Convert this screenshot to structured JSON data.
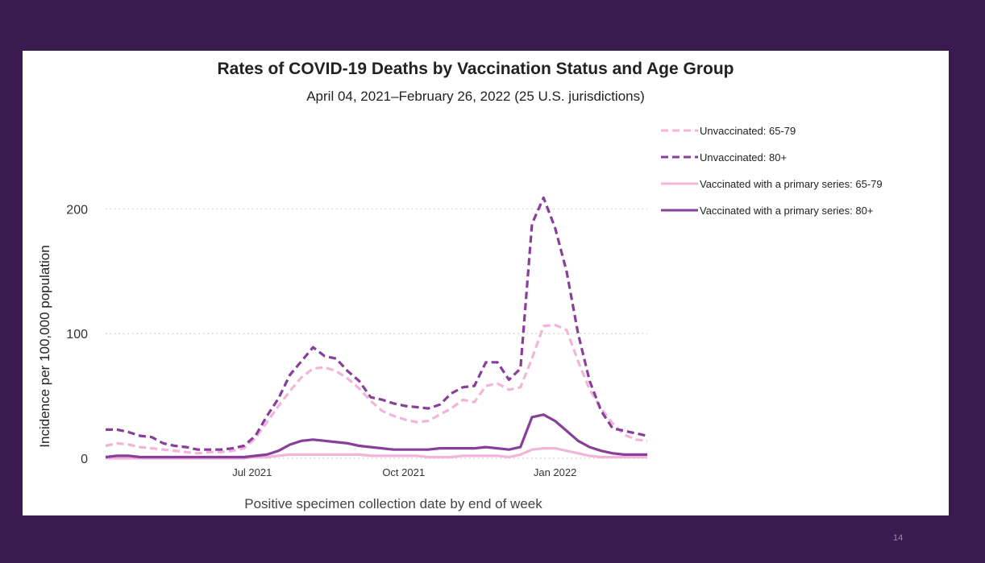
{
  "slide": {
    "page_number": "14",
    "background_color": "#3b1a50"
  },
  "chart_data": {
    "type": "line",
    "title": "Rates of COVID-19 Deaths by Vaccination Status and Age Group",
    "subtitle": "April 04, 2021–February 26, 2022 (25 U.S. jurisdictions)",
    "xlabel": "Positive specimen collection date by end of week",
    "ylabel": "Incidence per 100,000 population",
    "ylim": [
      0,
      230
    ],
    "xlim": [
      "2021-04-03",
      "2022-02-26"
    ],
    "y_ticks": [
      0,
      100,
      200
    ],
    "x_ticks": [
      {
        "label": "Jul 2021",
        "date": "2021-07-01"
      },
      {
        "label": "Oct 2021",
        "date": "2021-10-01"
      },
      {
        "label": "Jan 2022",
        "date": "2022-01-01"
      }
    ],
    "grid": "horizontal dotted",
    "legend_position": "top-right",
    "weeks": [
      "2021-04-03",
      "2021-04-10",
      "2021-04-17",
      "2021-04-24",
      "2021-05-01",
      "2021-05-08",
      "2021-05-15",
      "2021-05-22",
      "2021-05-29",
      "2021-06-05",
      "2021-06-12",
      "2021-06-19",
      "2021-06-26",
      "2021-07-03",
      "2021-07-10",
      "2021-07-17",
      "2021-07-24",
      "2021-07-31",
      "2021-08-07",
      "2021-08-14",
      "2021-08-21",
      "2021-08-28",
      "2021-09-04",
      "2021-09-11",
      "2021-09-18",
      "2021-09-25",
      "2021-10-02",
      "2021-10-09",
      "2021-10-16",
      "2021-10-23",
      "2021-10-30",
      "2021-11-06",
      "2021-11-13",
      "2021-11-20",
      "2021-11-27",
      "2021-12-04",
      "2021-12-11",
      "2021-12-18",
      "2021-12-25",
      "2022-01-01",
      "2022-01-08",
      "2022-01-15",
      "2022-01-22",
      "2022-01-29",
      "2022-02-05",
      "2022-02-12",
      "2022-02-19",
      "2022-02-26"
    ],
    "series": [
      {
        "name": "Unvaccinated: 65-79",
        "color": "#f2b5d9",
        "dash": "dashed",
        "values": [
          10,
          12,
          11,
          9,
          8,
          7,
          6,
          5,
          4,
          5,
          5,
          6,
          8,
          16,
          29,
          42,
          54,
          65,
          72,
          73,
          70,
          64,
          56,
          46,
          38,
          34,
          31,
          29,
          30,
          35,
          40,
          47,
          45,
          58,
          60,
          55,
          57,
          80,
          106,
          107,
          103,
          78,
          55,
          40,
          28,
          19,
          15,
          14
        ]
      },
      {
        "name": "Unvaccinated: 80+",
        "color": "#873f99",
        "dash": "dashed",
        "values": [
          23,
          23,
          21,
          18,
          17,
          12,
          10,
          9,
          7,
          7,
          7,
          8,
          10,
          18,
          34,
          48,
          67,
          78,
          89,
          82,
          80,
          70,
          62,
          49,
          47,
          44,
          42,
          41,
          40,
          43,
          52,
          57,
          58,
          77,
          77,
          63,
          72,
          188,
          209,
          185,
          150,
          100,
          62,
          38,
          24,
          22,
          20,
          18
        ]
      },
      {
        "name": "Vaccinated with a primary series: 65-79",
        "color": "#f2b5d9",
        "dash": "solid",
        "values": [
          0,
          0,
          0,
          0,
          0,
          0,
          0,
          0,
          0,
          0,
          0,
          0,
          0,
          1,
          1,
          2,
          3,
          3,
          3,
          3,
          3,
          3,
          3,
          2,
          2,
          2,
          2,
          2,
          1,
          1,
          1,
          2,
          2,
          2,
          2,
          1,
          3,
          7,
          8,
          8,
          6,
          4,
          2,
          1,
          1,
          1,
          1,
          1
        ]
      },
      {
        "name": "Vaccinated with a primary series: 80+",
        "color": "#873f99",
        "dash": "solid",
        "values": [
          1,
          2,
          2,
          1,
          1,
          1,
          1,
          1,
          1,
          1,
          1,
          1,
          1,
          2,
          3,
          6,
          11,
          14,
          15,
          14,
          13,
          12,
          10,
          9,
          8,
          7,
          7,
          7,
          7,
          8,
          8,
          8,
          8,
          9,
          8,
          7,
          9,
          33,
          35,
          30,
          22,
          14,
          9,
          6,
          4,
          3,
          3,
          3
        ]
      }
    ]
  }
}
